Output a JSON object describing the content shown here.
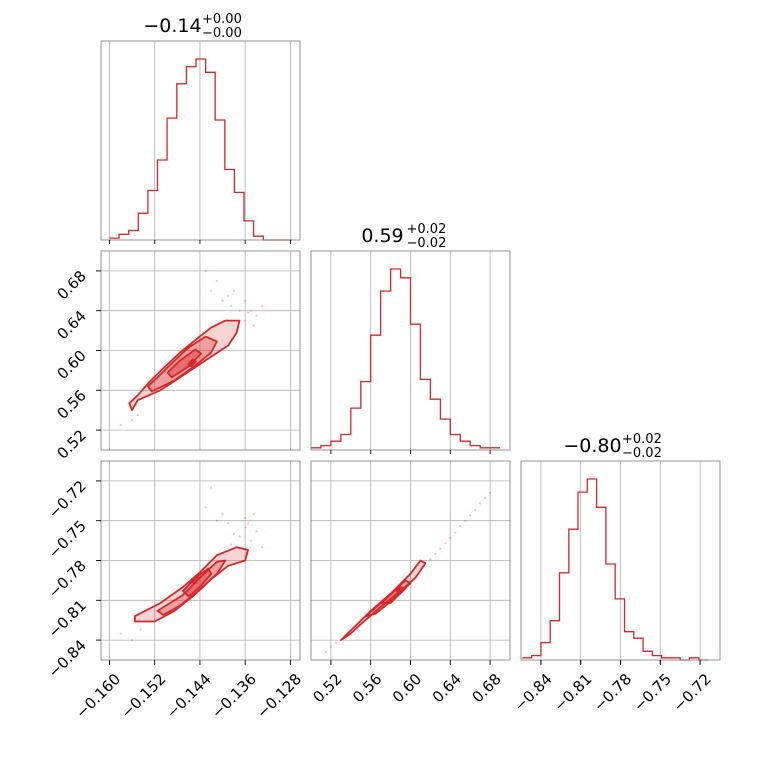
{
  "chart_data": {
    "type": "corner",
    "color": "#d62728",
    "parameters": [
      {
        "median": "−0.14",
        "plus": "+0.00",
        "minus": "−0.00",
        "range": [
          -0.1615,
          -0.1263
        ],
        "ticks": [
          "−0.160",
          "−0.152",
          "−0.144",
          "−0.136",
          "−0.128"
        ],
        "tick_values": [
          -0.16,
          -0.152,
          -0.144,
          -0.136,
          -0.128
        ]
      },
      {
        "median": "0.59",
        "plus": "+0.02",
        "minus": "−0.02",
        "range": [
          0.5,
          0.7
        ],
        "ticks": [
          "0.52",
          "0.56",
          "0.60",
          "0.64",
          "0.68"
        ],
        "tick_values": [
          0.52,
          0.56,
          0.6,
          0.64,
          0.68
        ]
      },
      {
        "median": "−0.80",
        "plus": "+0.02",
        "minus": "−0.02",
        "range": [
          -0.855,
          -0.705
        ],
        "ticks": [
          "−0.84",
          "−0.81",
          "−0.78",
          "−0.75",
          "−0.72"
        ],
        "tick_values": [
          -0.84,
          -0.81,
          -0.78,
          -0.75,
          -0.72
        ]
      }
    ],
    "histograms": [
      {
        "bin_edges": [
          -0.16,
          -0.1583,
          -0.1566,
          -0.1549,
          -0.1532,
          -0.1515,
          -0.1498,
          -0.1481,
          -0.1464,
          -0.1447,
          -0.143,
          -0.1413,
          -0.1396,
          -0.1379,
          -0.1362,
          -0.1345,
          -0.1328,
          -0.1311,
          -0.1294,
          -0.1277
        ],
        "counts": [
          1,
          3,
          5,
          14,
          26,
          42,
          64,
          82,
          91,
          95,
          88,
          63,
          37,
          25,
          10,
          2,
          0,
          0,
          0
        ]
      },
      {
        "bin_edges": [
          0.5,
          0.51,
          0.52,
          0.53,
          0.54,
          0.55,
          0.56,
          0.57,
          0.58,
          0.59,
          0.6,
          0.61,
          0.62,
          0.63,
          0.64,
          0.65,
          0.66,
          0.67,
          0.68,
          0.69
        ],
        "counts": [
          1,
          2,
          4,
          7,
          19,
          31,
          52,
          72,
          82,
          78,
          57,
          32,
          23,
          14,
          7,
          4,
          2,
          1,
          1
        ]
      },
      {
        "bin_edges": [
          -0.854,
          -0.847,
          -0.84,
          -0.833,
          -0.826,
          -0.819,
          -0.812,
          -0.805,
          -0.798,
          -0.791,
          -0.784,
          -0.777,
          -0.77,
          -0.763,
          -0.756,
          -0.749,
          -0.742,
          -0.735,
          -0.728,
          -0.721,
          -0.714
        ],
        "counts": [
          1,
          2,
          8,
          18,
          40,
          60,
          77,
          83,
          70,
          44,
          28,
          13,
          10,
          4,
          2,
          1,
          1,
          0,
          1,
          0
        ]
      }
    ],
    "pairs": [
      {
        "x_param": 0,
        "y_param": 1,
        "levels": [
          [
            [
              -0.156,
              0.54
            ],
            [
              -0.155,
              0.55
            ],
            [
              -0.151,
              0.56
            ],
            [
              -0.147,
              0.575
            ],
            [
              -0.143,
              0.59
            ],
            [
              -0.139,
              0.605
            ],
            [
              -0.1375,
              0.618
            ],
            [
              -0.137,
              0.63
            ],
            [
              -0.1395,
              0.63
            ],
            [
              -0.142,
              0.623
            ],
            [
              -0.1445,
              0.612
            ],
            [
              -0.1475,
              0.598
            ],
            [
              -0.1505,
              0.582
            ],
            [
              -0.153,
              0.568
            ],
            [
              -0.155,
              0.555
            ],
            [
              -0.1565,
              0.547
            ]
          ],
          [
            [
              -0.1525,
              0.559
            ],
            [
              -0.1485,
              0.57
            ],
            [
              -0.145,
              0.584
            ],
            [
              -0.142,
              0.598
            ],
            [
              -0.141,
              0.609
            ],
            [
              -0.143,
              0.614
            ],
            [
              -0.146,
              0.603
            ],
            [
              -0.149,
              0.587
            ],
            [
              -0.1515,
              0.573
            ],
            [
              -0.1532,
              0.564
            ]
          ],
          [
            [
              -0.149,
              0.573
            ],
            [
              -0.146,
              0.584
            ],
            [
              -0.1438,
              0.597
            ],
            [
              -0.1448,
              0.601
            ],
            [
              -0.1475,
              0.59
            ],
            [
              -0.1497,
              0.578
            ]
          ],
          [
            [
              -0.1455,
              0.584
            ],
            [
              -0.1447,
              0.589
            ],
            [
              -0.1453,
              0.591
            ],
            [
              -0.1461,
              0.586
            ]
          ]
        ],
        "outliers": [
          [
            -0.143,
            0.68
          ],
          [
            -0.141,
            0.67
          ],
          [
            -0.138,
            0.66
          ],
          [
            -0.136,
            0.65
          ],
          [
            -0.135,
            0.64
          ],
          [
            -0.134,
            0.635
          ],
          [
            -0.133,
            0.645
          ],
          [
            -0.14,
            0.65
          ],
          [
            -0.139,
            0.655
          ],
          [
            -0.136,
            0.63
          ],
          [
            -0.137,
            0.64
          ],
          [
            -0.156,
            0.53
          ],
          [
            -0.158,
            0.525
          ],
          [
            -0.155,
            0.535
          ],
          [
            -0.142,
            0.66
          ],
          [
            -0.1345,
            0.625
          ],
          [
            -0.1385,
            0.645
          ],
          [
            -0.1355,
            0.638
          ]
        ]
      },
      {
        "x_param": 0,
        "y_param": 2,
        "levels": [
          [
            [
              -0.1555,
              -0.826
            ],
            [
              -0.1555,
              -0.822
            ],
            [
              -0.151,
              -0.812
            ],
            [
              -0.147,
              -0.8
            ],
            [
              -0.144,
              -0.789
            ],
            [
              -0.141,
              -0.776
            ],
            [
              -0.1375,
              -0.77
            ],
            [
              -0.1355,
              -0.772
            ],
            [
              -0.136,
              -0.78
            ],
            [
              -0.139,
              -0.784
            ],
            [
              -0.142,
              -0.794
            ],
            [
              -0.145,
              -0.806
            ],
            [
              -0.1485,
              -0.818
            ],
            [
              -0.152,
              -0.826
            ]
          ],
          [
            [
              -0.1515,
              -0.818
            ],
            [
              -0.147,
              -0.806
            ],
            [
              -0.144,
              -0.793
            ],
            [
              -0.141,
              -0.781
            ],
            [
              -0.1395,
              -0.78
            ],
            [
              -0.141,
              -0.79
            ],
            [
              -0.144,
              -0.802
            ],
            [
              -0.1475,
              -0.814
            ],
            [
              -0.1505,
              -0.821
            ]
          ],
          [
            [
              -0.147,
              -0.803
            ],
            [
              -0.1448,
              -0.793
            ],
            [
              -0.1425,
              -0.786
            ],
            [
              -0.142,
              -0.79
            ],
            [
              -0.144,
              -0.8
            ],
            [
              -0.146,
              -0.807
            ]
          ],
          [
            [
              -0.1448,
              -0.797
            ],
            [
              -0.1442,
              -0.793
            ],
            [
              -0.1448,
              -0.792
            ],
            [
              -0.1455,
              -0.796
            ]
          ]
        ],
        "outliers": [
          [
            -0.143,
            -0.74
          ],
          [
            -0.141,
            -0.75
          ],
          [
            -0.138,
            -0.76
          ],
          [
            -0.136,
            -0.755
          ],
          [
            -0.135,
            -0.765
          ],
          [
            -0.134,
            -0.758
          ],
          [
            -0.133,
            -0.77
          ],
          [
            -0.14,
            -0.745
          ],
          [
            -0.139,
            -0.752
          ],
          [
            -0.136,
            -0.748
          ],
          [
            -0.137,
            -0.762
          ],
          [
            -0.156,
            -0.84
          ],
          [
            -0.158,
            -0.835
          ],
          [
            -0.1545,
            -0.832
          ],
          [
            -0.142,
            -0.725
          ],
          [
            -0.1345,
            -0.745
          ],
          [
            -0.1385,
            -0.768
          ],
          [
            -0.1355,
            -0.752
          ]
        ]
      },
      {
        "x_param": 1,
        "y_param": 2,
        "levels": [
          [
            [
              0.53,
              -0.84
            ],
            [
              0.56,
              -0.818
            ],
            [
              0.58,
              -0.805
            ],
            [
              0.6,
              -0.79
            ],
            [
              0.61,
              -0.78
            ],
            [
              0.615,
              -0.782
            ],
            [
              0.605,
              -0.793
            ],
            [
              0.59,
              -0.803
            ],
            [
              0.57,
              -0.815
            ],
            [
              0.55,
              -0.828
            ],
            [
              0.54,
              -0.835
            ]
          ],
          [
            [
              0.555,
              -0.822
            ],
            [
              0.575,
              -0.809
            ],
            [
              0.595,
              -0.795
            ],
            [
              0.6,
              -0.797
            ],
            [
              0.585,
              -0.808
            ],
            [
              0.565,
              -0.82
            ]
          ],
          [
            [
              0.57,
              -0.812
            ],
            [
              0.588,
              -0.8
            ],
            [
              0.595,
              -0.801
            ],
            [
              0.58,
              -0.812
            ]
          ],
          [
            [
              0.586,
              -0.803
            ],
            [
              0.59,
              -0.8
            ],
            [
              0.588,
              -0.804
            ]
          ]
        ],
        "outliers": [
          [
            0.62,
            -0.779
          ],
          [
            0.63,
            -0.771
          ],
          [
            0.64,
            -0.763
          ],
          [
            0.65,
            -0.754
          ],
          [
            0.66,
            -0.746
          ],
          [
            0.67,
            -0.737
          ],
          [
            0.68,
            -0.729
          ],
          [
            0.52,
            -0.845
          ],
          [
            0.515,
            -0.849
          ],
          [
            0.625,
            -0.775
          ],
          [
            0.635,
            -0.767
          ],
          [
            0.645,
            -0.759
          ],
          [
            0.655,
            -0.75
          ],
          [
            0.665,
            -0.742
          ],
          [
            0.675,
            -0.733
          ],
          [
            0.525,
            -0.842
          ]
        ]
      }
    ]
  }
}
